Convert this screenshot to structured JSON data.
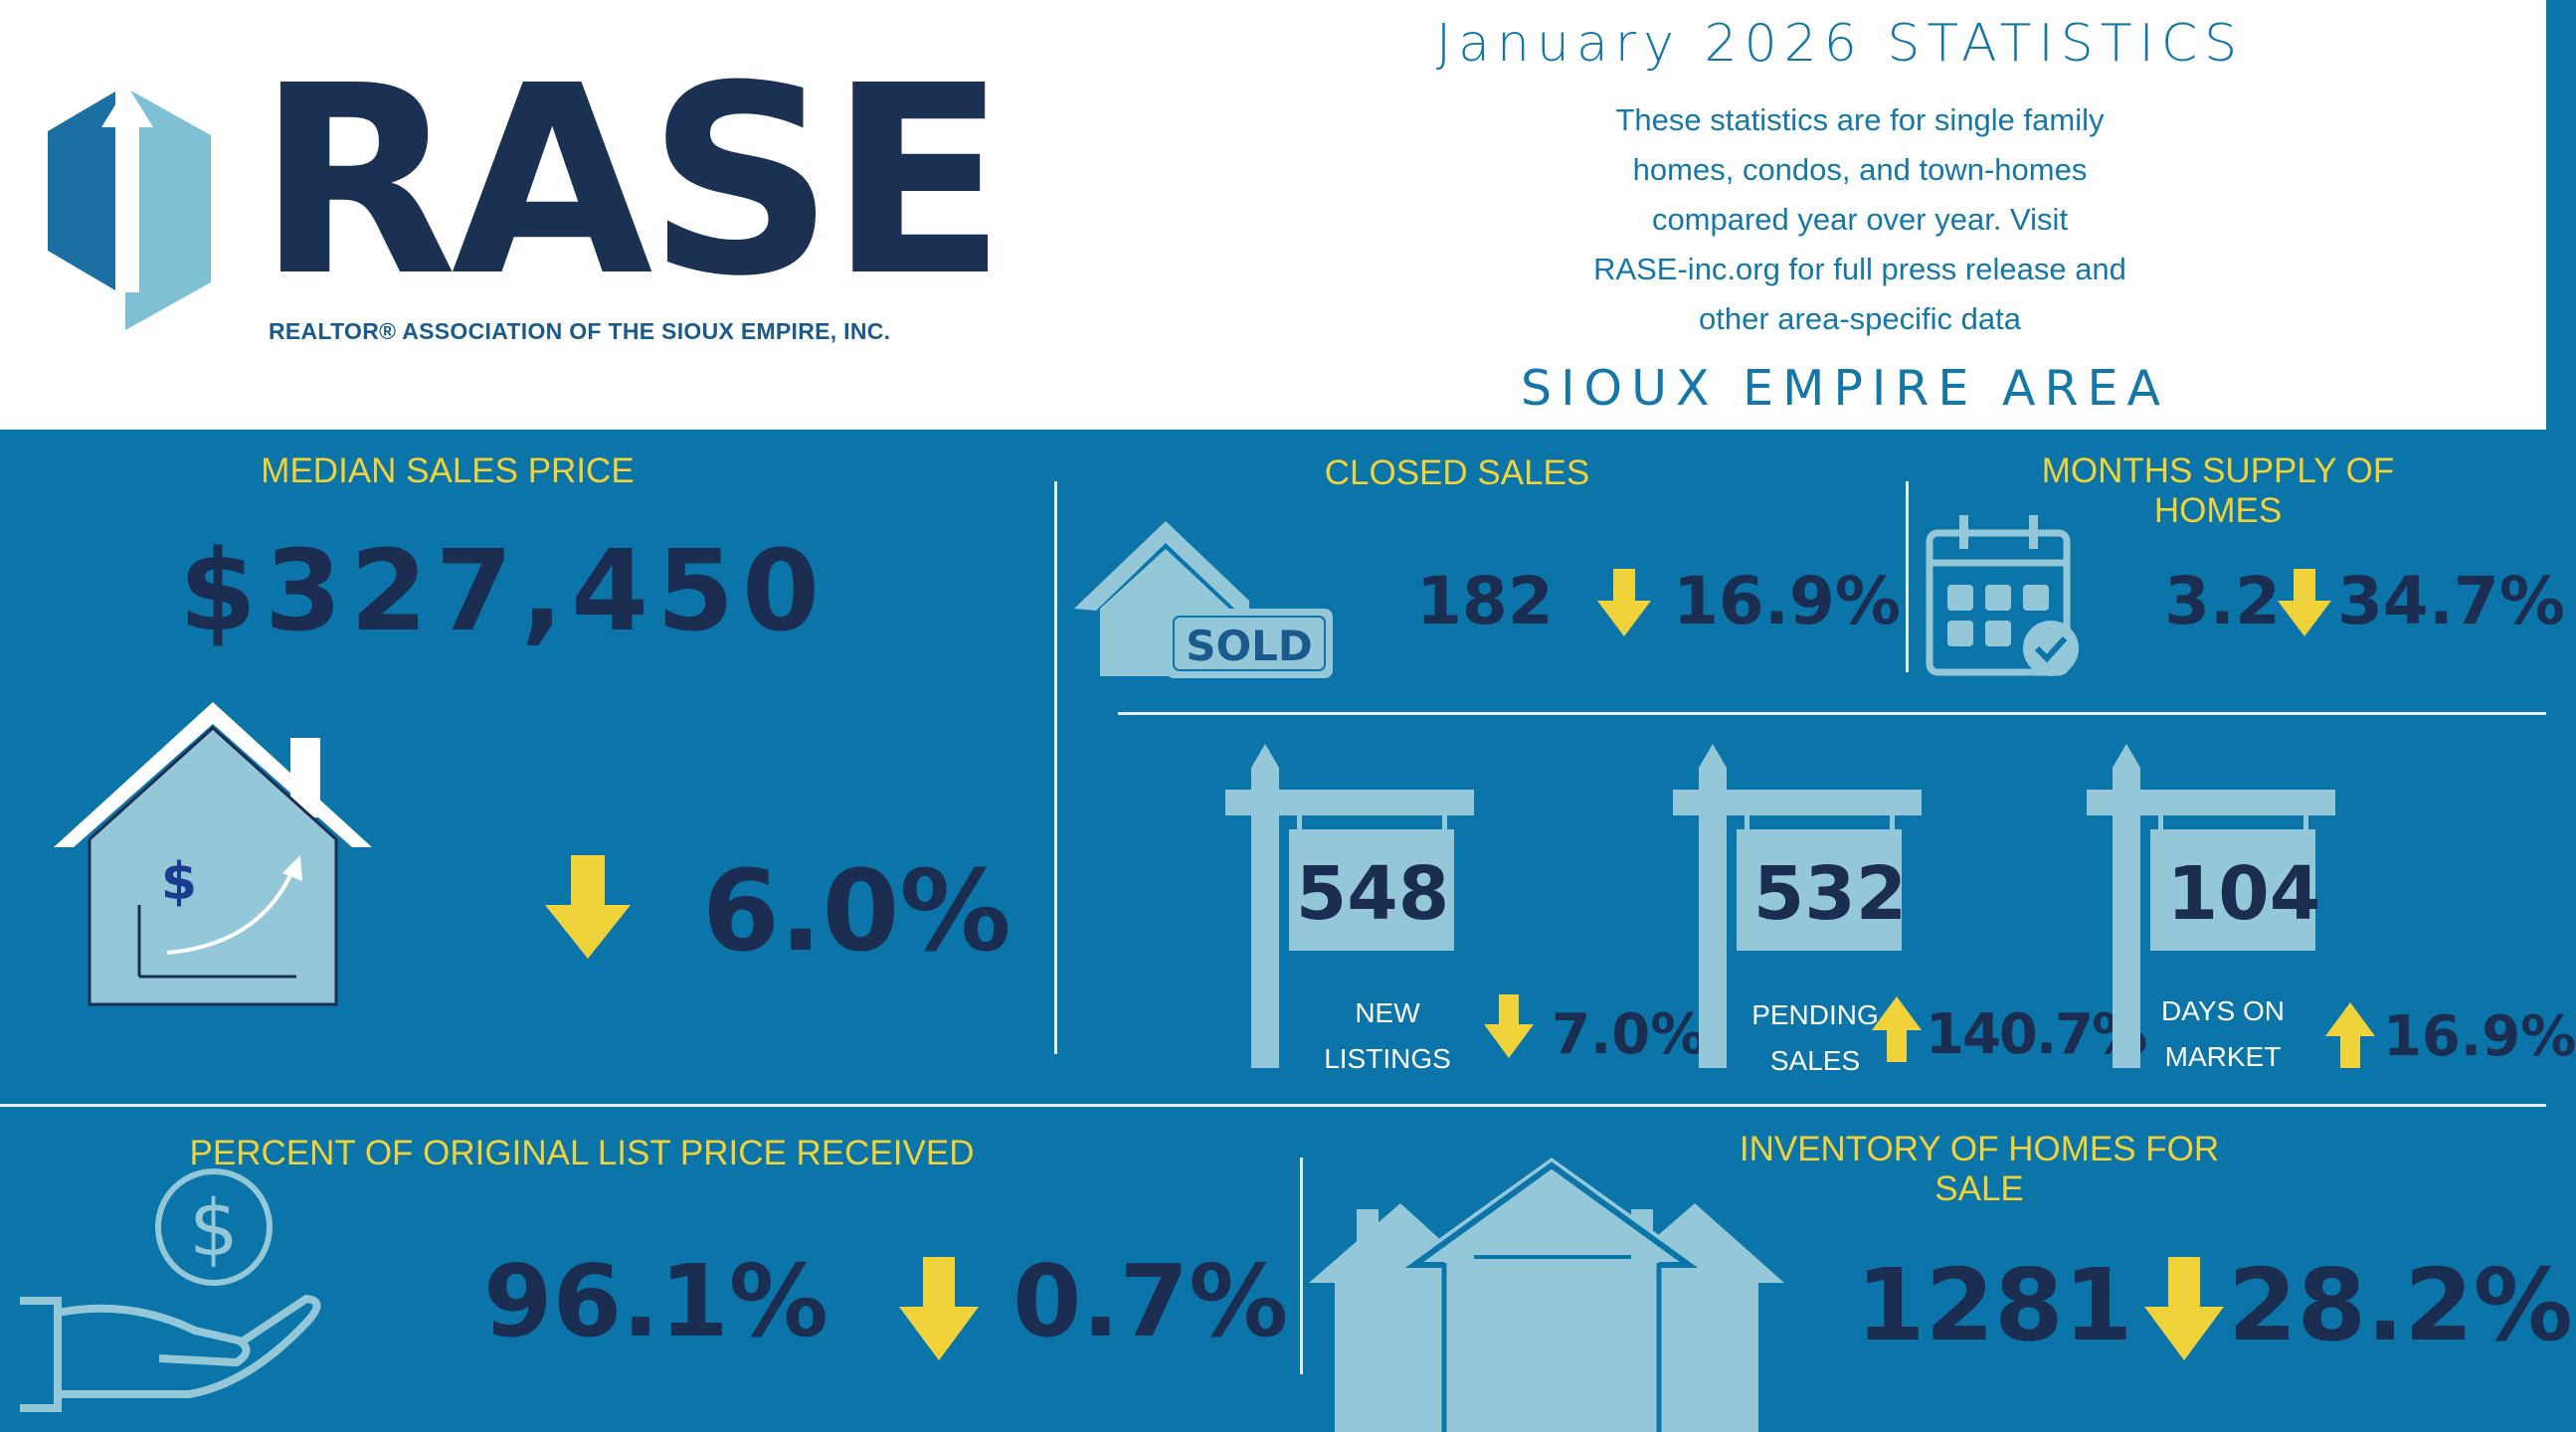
{
  "brand": {
    "logo_text": "RASE",
    "logo_sub": "REALTOR® ASSOCIATION OF THE SIOUX EMPIRE, INC."
  },
  "header": {
    "title": "January 2026 STATISTICS",
    "desc_lines": [
      "These statistics are for single family",
      "homes, condos, and town-homes",
      "compared year over year. Visit",
      "RASE-inc.org for full press release and",
      "other area-specific data"
    ],
    "area": "SIOUX EMPIRE AREA"
  },
  "median": {
    "label": "MEDIAN SALES PRICE",
    "value": "$327,450",
    "change": "6.0%",
    "direction": "down",
    "currency_symbol": "$"
  },
  "closed": {
    "label": "CLOSED SALES",
    "value": "182",
    "change": "16.9%",
    "direction": "down",
    "sign_text": "SOLD"
  },
  "supply": {
    "label": "MONTHS SUPPLY OF HOMES",
    "value": "3.2",
    "change": "34.7%",
    "direction": "down"
  },
  "new_listings": {
    "value": "548",
    "label_l1": "NEW",
    "label_l2": "LISTINGS",
    "change": "7.0%",
    "direction": "down"
  },
  "pending": {
    "value": "532",
    "label_l1": "PENDING",
    "label_l2": "SALES",
    "change": "140.7%",
    "direction": "up"
  },
  "dom": {
    "value": "104",
    "label_l1": "DAYS ON",
    "label_l2": "MARKET",
    "change": "16.9%",
    "direction": "up"
  },
  "list_price": {
    "label": "PERCENT OF ORIGINAL LIST PRICE RECEIVED",
    "value": "96.1%",
    "change": "0.7%",
    "direction": "down",
    "coin_symbol": "$"
  },
  "inventory": {
    "label": "INVENTORY OF HOMES FOR SALE",
    "value": "1281",
    "change": "28.2%",
    "direction": "down"
  },
  "colors": {
    "background": "#0b74a8",
    "navy": "#1b2e52",
    "yellow": "#f0d23a",
    "light_blue": "#94c8d8",
    "header_blue": "#1577a8",
    "white": "#ffffff"
  }
}
